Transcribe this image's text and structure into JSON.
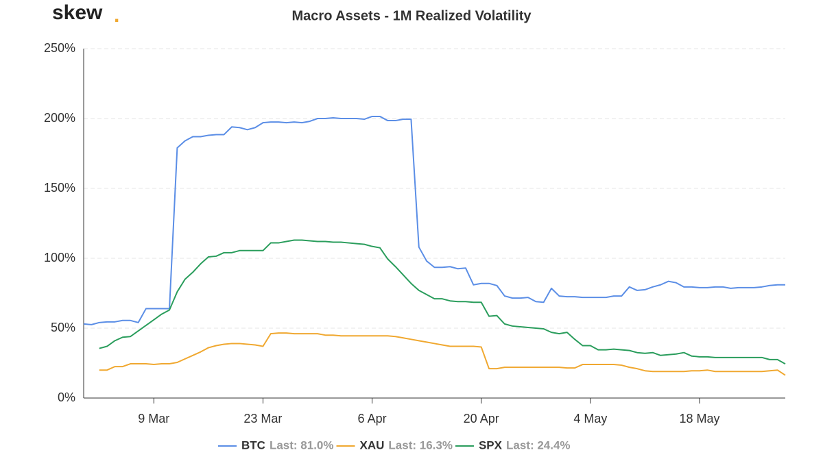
{
  "logo": "skew",
  "logo_dot": ".",
  "chart_data": {
    "type": "line",
    "title": "Macro Assets - 1M Realized Volatility",
    "x": [
      "29 Feb",
      "1 Mar",
      "2 Mar",
      "3 Mar",
      "4 Mar",
      "5 Mar",
      "6 Mar",
      "7 Mar",
      "8 Mar",
      "9 Mar",
      "10 Mar",
      "11 Mar",
      "12 Mar",
      "13 Mar",
      "14 Mar",
      "15 Mar",
      "16 Mar",
      "17 Mar",
      "18 Mar",
      "19 Mar",
      "20 Mar",
      "21 Mar",
      "22 Mar",
      "23 Mar",
      "24 Mar",
      "25 Mar",
      "26 Mar",
      "27 Mar",
      "28 Mar",
      "29 Mar",
      "30 Mar",
      "31 Mar",
      "1 Apr",
      "2 Apr",
      "3 Apr",
      "4 Apr",
      "5 Apr",
      "6 Apr",
      "7 Apr",
      "8 Apr",
      "9 Apr",
      "10 Apr",
      "11 Apr",
      "12 Apr",
      "13 Apr",
      "14 Apr",
      "15 Apr",
      "16 Apr",
      "17 Apr",
      "18 Apr",
      "19 Apr",
      "20 Apr",
      "21 Apr",
      "22 Apr",
      "23 Apr",
      "24 Apr",
      "25 Apr",
      "26 Apr",
      "27 Apr",
      "28 Apr",
      "29 Apr",
      "30 Apr",
      "1 May",
      "2 May",
      "3 May",
      "4 May",
      "5 May",
      "6 May",
      "7 May",
      "8 May",
      "9 May",
      "10 May",
      "11 May",
      "12 May",
      "13 May",
      "14 May",
      "15 May",
      "16 May",
      "17 May",
      "18 May",
      "19 May",
      "20 May",
      "21 May",
      "22 May",
      "23 May",
      "24 May",
      "25 May",
      "26 May",
      "27 May",
      "28 May",
      "29 May"
    ],
    "series": [
      {
        "name": "BTC",
        "last": "Last: 81.0%",
        "color": "#5b8ee6",
        "values": [
          53,
          52.5,
          54,
          54.5,
          54.5,
          55.5,
          55.5,
          54,
          64,
          64,
          64,
          64,
          179,
          184,
          187,
          187,
          188,
          188.5,
          188.5,
          194,
          193.5,
          192,
          193.5,
          197,
          197.5,
          197.5,
          197,
          197.5,
          197,
          198,
          200,
          200,
          200.5,
          200,
          200,
          200,
          199.5,
          201.5,
          201.5,
          198.5,
          198.5,
          199.5,
          199.5,
          108,
          98,
          93.5,
          93.5,
          94,
          92.5,
          93,
          81,
          82,
          82,
          80.5,
          73,
          71.5,
          71.5,
          72,
          69,
          68.5,
          78.5,
          73,
          72.5,
          72.5,
          72,
          72,
          72,
          72,
          73,
          73,
          79.5,
          77,
          77.5,
          79.5,
          81,
          83.5,
          82.5,
          79.5,
          79.5,
          79,
          79,
          79.5,
          79.5,
          78.5,
          79,
          79,
          79,
          79.5,
          80.5,
          81,
          81
        ]
      },
      {
        "name": "XAU",
        "last": "Last: 16.3%",
        "color": "#f0a830",
        "values": [
          null,
          null,
          20,
          20,
          22.5,
          22.5,
          24.5,
          24.5,
          24.5,
          24,
          24.5,
          24.5,
          25.5,
          28,
          30.5,
          33,
          36,
          37.5,
          38.5,
          39,
          39,
          38.5,
          38,
          37,
          46,
          46.5,
          46.5,
          46,
          46,
          46,
          46,
          45,
          45,
          44.5,
          44.5,
          44.5,
          44.5,
          44.5,
          44.5,
          44.5,
          44,
          43,
          42,
          41,
          40,
          39,
          38,
          37,
          37,
          37,
          37,
          36.5,
          21,
          21,
          22,
          22,
          22,
          22,
          22,
          22,
          22,
          22,
          21.5,
          21.5,
          24,
          24,
          24,
          24,
          24,
          23.5,
          22,
          21,
          19.5,
          19,
          19,
          19,
          19,
          19,
          19.5,
          19.5,
          20,
          19,
          19,
          19,
          19,
          19,
          19,
          19,
          19.5,
          20,
          16.3
        ]
      },
      {
        "name": "SPX",
        "last": "Last: 24.4%",
        "color": "#2a9d5c",
        "values": [
          null,
          null,
          35.5,
          37,
          41,
          43.5,
          44,
          48,
          52,
          56,
          60,
          63,
          76,
          85,
          90,
          96,
          101,
          101.5,
          104,
          104,
          105.5,
          105.5,
          105.5,
          105.5,
          111,
          111,
          112,
          113,
          113,
          112.5,
          112,
          112,
          111.5,
          111.5,
          111,
          110.5,
          110,
          108.5,
          107.5,
          99.5,
          94,
          88,
          82,
          77,
          74,
          71,
          71,
          69.5,
          69,
          69,
          68.5,
          68.5,
          58.5,
          59,
          53,
          51.5,
          51,
          50.5,
          50,
          49.5,
          47,
          46,
          47,
          42,
          37.5,
          37.5,
          34.5,
          34.5,
          35,
          34.5,
          34,
          32.5,
          32,
          32.5,
          30.5,
          31,
          31.5,
          32.5,
          30,
          29.5,
          29.5,
          29,
          29,
          29,
          29,
          29,
          29,
          29,
          27.5,
          27.5,
          24.4
        ]
      }
    ],
    "xticks": [
      "9 Mar",
      "23 Mar",
      "6 Apr",
      "20 Apr",
      "4 May",
      "18 May"
    ],
    "ylim": [
      0,
      250
    ],
    "yticks": [
      {
        "value": 0,
        "label": "0%"
      },
      {
        "value": 50,
        "label": "50%"
      },
      {
        "value": 100,
        "label": "100%"
      },
      {
        "value": 150,
        "label": "150%"
      },
      {
        "value": 200,
        "label": "200%"
      },
      {
        "value": 250,
        "label": "250%"
      }
    ],
    "grid": true,
    "legend": "bottom"
  }
}
